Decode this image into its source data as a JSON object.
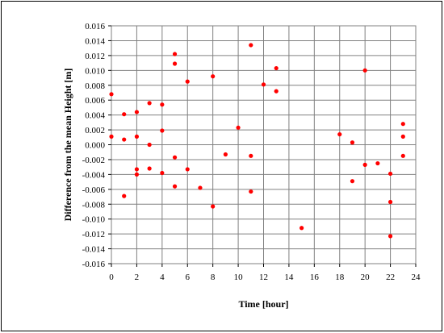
{
  "chart_data": {
    "type": "scatter",
    "xlabel": "Time [hour]",
    "ylabel": "Difference from the mean Height [m]",
    "xlim": [
      0,
      24
    ],
    "ylim": [
      -0.016,
      0.016
    ],
    "x_ticks": [
      "0",
      "2",
      "4",
      "6",
      "8",
      "10",
      "12",
      "14",
      "16",
      "18",
      "20",
      "22",
      "24"
    ],
    "y_ticks": [
      "0.016",
      "0.014",
      "0.012",
      "0.010",
      "0.008",
      "0.006",
      "0.004",
      "0.002",
      "0.000",
      "-0.002",
      "-0.004",
      "-0.006",
      "-0.008",
      "-0.010",
      "-0.012",
      "-0.014",
      "-0.016"
    ],
    "grid": true,
    "marker_color": "#ff0000",
    "points": [
      {
        "x": 0,
        "y": 0.0068
      },
      {
        "x": 0,
        "y": 0.0011
      },
      {
        "x": 1,
        "y": 0.0041
      },
      {
        "x": 1,
        "y": 0.0007
      },
      {
        "x": 1,
        "y": -0.0069
      },
      {
        "x": 2,
        "y": 0.0044
      },
      {
        "x": 2,
        "y": 0.0011
      },
      {
        "x": 2,
        "y": -0.0033
      },
      {
        "x": 2,
        "y": -0.004
      },
      {
        "x": 3,
        "y": 0.0056
      },
      {
        "x": 3,
        "y": 0.0
      },
      {
        "x": 3,
        "y": -0.0032
      },
      {
        "x": 4,
        "y": 0.0054
      },
      {
        "x": 4,
        "y": 0.0019
      },
      {
        "x": 4,
        "y": -0.0038
      },
      {
        "x": 5,
        "y": 0.0122
      },
      {
        "x": 5,
        "y": 0.0109
      },
      {
        "x": 5,
        "y": -0.0017
      },
      {
        "x": 5,
        "y": -0.0056
      },
      {
        "x": 6,
        "y": 0.0085
      },
      {
        "x": 6,
        "y": -0.0033
      },
      {
        "x": 7,
        "y": -0.0058
      },
      {
        "x": 8,
        "y": 0.0092
      },
      {
        "x": 8,
        "y": -0.0083
      },
      {
        "x": 9,
        "y": -0.0013
      },
      {
        "x": 10,
        "y": 0.0023
      },
      {
        "x": 11,
        "y": 0.0134
      },
      {
        "x": 11,
        "y": -0.0015
      },
      {
        "x": 11,
        "y": -0.0063
      },
      {
        "x": 12,
        "y": 0.0081
      },
      {
        "x": 13,
        "y": 0.0103
      },
      {
        "x": 13,
        "y": 0.0072
      },
      {
        "x": 15,
        "y": -0.0112
      },
      {
        "x": 18,
        "y": 0.0014
      },
      {
        "x": 19,
        "y": 0.0003
      },
      {
        "x": 19,
        "y": -0.0049
      },
      {
        "x": 20,
        "y": 0.01
      },
      {
        "x": 20,
        "y": -0.0027
      },
      {
        "x": 21,
        "y": -0.0025
      },
      {
        "x": 22,
        "y": -0.0039
      },
      {
        "x": 22,
        "y": -0.0077
      },
      {
        "x": 22,
        "y": -0.0123
      },
      {
        "x": 23,
        "y": 0.0028
      },
      {
        "x": 23,
        "y": 0.0011
      },
      {
        "x": 23,
        "y": -0.0015
      }
    ]
  }
}
